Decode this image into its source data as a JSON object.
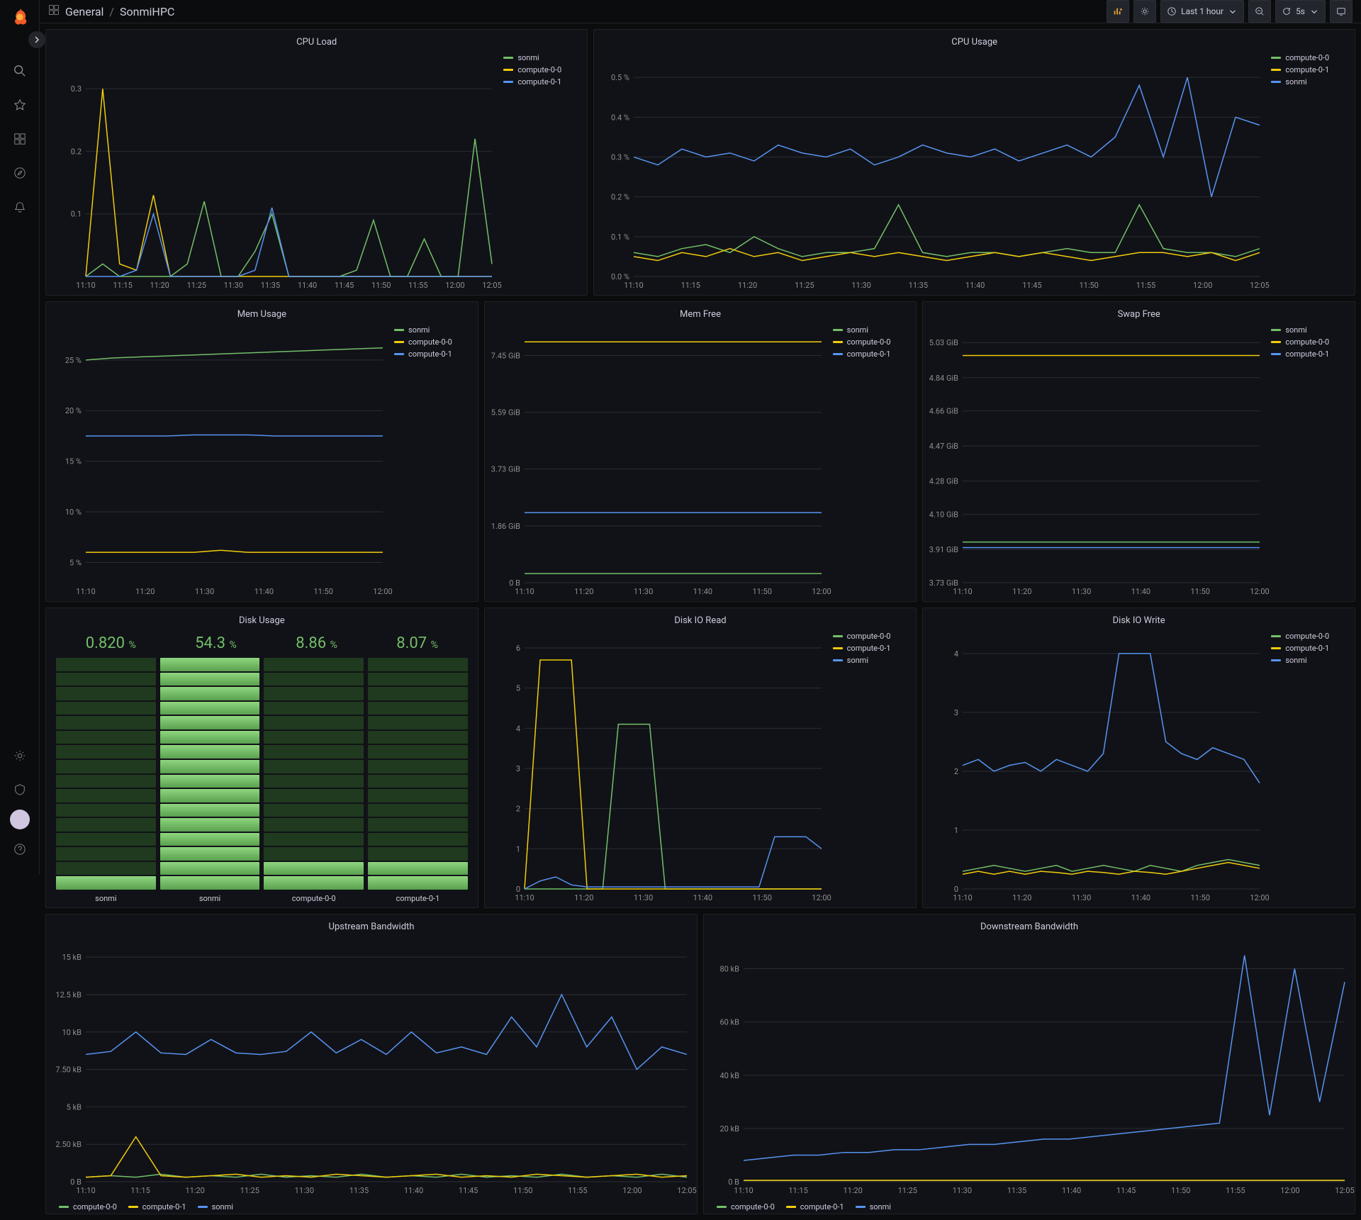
{
  "colors": {
    "bg": "#0b0c0e",
    "panel_bg": "#111217",
    "border": "#202226",
    "text": "#ccccdc",
    "text_dim": "#8e8e8e",
    "grid": "#2a2d34",
    "green": "#73bf69",
    "yellow": "#f2cc0c",
    "blue": "#5794f2"
  },
  "breadcrumb": {
    "folder": "General",
    "dashboard": "SonmiHPC"
  },
  "toolbar": {
    "time_label": "Last 1 hour",
    "refresh_label": "5s"
  },
  "x_ticks_full": [
    "11:10",
    "11:15",
    "11:20",
    "11:25",
    "11:30",
    "11:35",
    "11:40",
    "11:45",
    "11:50",
    "11:55",
    "12:00",
    "12:05"
  ],
  "x_ticks_short": [
    "11:10",
    "11:20",
    "11:30",
    "11:40",
    "11:50",
    "12:00"
  ],
  "panels": {
    "cpu_load": {
      "title": "CPU Load",
      "legend": [
        {
          "label": "sonmi",
          "color": "#73bf69"
        },
        {
          "label": "compute-0-0",
          "color": "#f2cc0c"
        },
        {
          "label": "compute-0-1",
          "color": "#5794f2"
        }
      ],
      "y_ticks": [
        "0.1",
        "0.2",
        "0.3"
      ],
      "ylim": [
        0,
        0.35
      ],
      "series": {
        "sonmi": [
          0,
          0.02,
          0,
          0,
          0,
          0,
          0.02,
          0.12,
          0,
          0,
          0.04,
          0.1,
          0,
          0,
          0,
          0,
          0.01,
          0.09,
          0,
          0,
          0.06,
          0,
          0,
          0.22,
          0.02
        ],
        "compute-0-0": [
          0,
          0.3,
          0.02,
          0.01,
          0.13,
          0,
          0,
          0,
          0,
          0,
          0,
          0,
          0,
          0,
          0,
          0,
          0,
          0,
          0,
          0,
          0,
          0,
          0,
          0,
          0
        ],
        "compute-0-1": [
          0,
          0,
          0,
          0.01,
          0.1,
          0,
          0,
          0,
          0,
          0,
          0.01,
          0.11,
          0,
          0,
          0,
          0,
          0,
          0,
          0,
          0,
          0,
          0,
          0,
          0,
          0
        ]
      }
    },
    "cpu_usage": {
      "title": "CPU Usage",
      "legend": [
        {
          "label": "compute-0-0",
          "color": "#73bf69"
        },
        {
          "label": "compute-0-1",
          "color": "#f2cc0c"
        },
        {
          "label": "sonmi",
          "color": "#5794f2"
        }
      ],
      "y_ticks": [
        "0.0 %",
        "0.1 %",
        "0.2 %",
        "0.3 %",
        "0.4 %",
        "0.5 %"
      ],
      "ylim": [
        0,
        0.55
      ],
      "series": {
        "sonmi": [
          0.3,
          0.28,
          0.32,
          0.3,
          0.31,
          0.29,
          0.33,
          0.31,
          0.3,
          0.32,
          0.28,
          0.3,
          0.33,
          0.31,
          0.3,
          0.32,
          0.29,
          0.31,
          0.33,
          0.3,
          0.35,
          0.48,
          0.3,
          0.5,
          0.2,
          0.4,
          0.38
        ],
        "compute-0-0": [
          0.06,
          0.05,
          0.07,
          0.08,
          0.06,
          0.1,
          0.07,
          0.05,
          0.06,
          0.06,
          0.07,
          0.18,
          0.06,
          0.05,
          0.06,
          0.06,
          0.05,
          0.06,
          0.07,
          0.06,
          0.06,
          0.18,
          0.07,
          0.06,
          0.06,
          0.05,
          0.07
        ],
        "compute-0-1": [
          0.05,
          0.04,
          0.06,
          0.05,
          0.07,
          0.05,
          0.06,
          0.04,
          0.05,
          0.06,
          0.05,
          0.06,
          0.05,
          0.04,
          0.05,
          0.06,
          0.05,
          0.06,
          0.05,
          0.04,
          0.05,
          0.06,
          0.06,
          0.05,
          0.06,
          0.04,
          0.06
        ]
      }
    },
    "mem_usage": {
      "title": "Mem Usage",
      "legend": [
        {
          "label": "sonmi",
          "color": "#73bf69"
        },
        {
          "label": "compute-0-0",
          "color": "#f2cc0c"
        },
        {
          "label": "compute-0-1",
          "color": "#5794f2"
        }
      ],
      "y_ticks": [
        "5 %",
        "10 %",
        "15 %",
        "20 %",
        "25 %"
      ],
      "ylim": [
        3,
        28
      ],
      "series": {
        "sonmi": [
          25,
          25.2,
          25.3,
          25.4,
          25.5,
          25.6,
          25.7,
          25.8,
          25.9,
          26,
          26.1,
          26.2
        ],
        "compute-0-0": [
          6,
          6,
          6,
          6,
          6,
          6.2,
          6,
          6,
          6,
          6,
          6,
          6
        ],
        "compute-0-1": [
          17.5,
          17.5,
          17.5,
          17.5,
          17.6,
          17.6,
          17.6,
          17.5,
          17.5,
          17.5,
          17.5,
          17.5
        ]
      }
    },
    "mem_free": {
      "title": "Mem Free",
      "legend": [
        {
          "label": "sonmi",
          "color": "#73bf69"
        },
        {
          "label": "compute-0-0",
          "color": "#f2cc0c"
        },
        {
          "label": "compute-0-1",
          "color": "#5794f2"
        }
      ],
      "y_ticks": [
        "0 B",
        "1.86 GiB",
        "3.73 GiB",
        "5.59 GiB",
        "7.45 GiB"
      ],
      "ylim": [
        0,
        8.3
      ],
      "series": {
        "sonmi": [
          0.3,
          0.3,
          0.3,
          0.3,
          0.3,
          0.3,
          0.3,
          0.3,
          0.3,
          0.3,
          0.3,
          0.3
        ],
        "compute-0-0": [
          7.9,
          7.9,
          7.9,
          7.9,
          7.9,
          7.9,
          7.9,
          7.9,
          7.9,
          7.9,
          7.9,
          7.9
        ],
        "compute-0-1": [
          2.3,
          2.3,
          2.3,
          2.3,
          2.3,
          2.3,
          2.3,
          2.3,
          2.3,
          2.3,
          2.3,
          2.3
        ]
      }
    },
    "swap_free": {
      "title": "Swap Free",
      "legend": [
        {
          "label": "sonmi",
          "color": "#73bf69"
        },
        {
          "label": "compute-0-0",
          "color": "#f2cc0c"
        },
        {
          "label": "compute-0-1",
          "color": "#5794f2"
        }
      ],
      "y_ticks": [
        "3.73 GiB",
        "3.91 GiB",
        "4.10 GiB",
        "4.28 GiB",
        "4.47 GiB",
        "4.66 GiB",
        "4.84 GiB",
        "5.03 GiB"
      ],
      "ylim": [
        3.73,
        5.1
      ],
      "series": {
        "sonmi": [
          3.95,
          3.95,
          3.95,
          3.95,
          3.95,
          3.95,
          3.95,
          3.95,
          3.95,
          3.95,
          3.95,
          3.95
        ],
        "compute-0-0": [
          4.96,
          4.96,
          4.96,
          4.96,
          4.96,
          4.96,
          4.96,
          4.96,
          4.96,
          4.96,
          4.96,
          4.96
        ],
        "compute-0-1": [
          3.92,
          3.92,
          3.92,
          3.92,
          3.92,
          3.92,
          3.92,
          3.92,
          3.92,
          3.92,
          3.92,
          3.92
        ]
      }
    },
    "disk_usage": {
      "title": "Disk Usage",
      "items": [
        {
          "label": "sonmi",
          "value": "0.820",
          "unit": "%",
          "filled": 1,
          "total": 16
        },
        {
          "label": "sonmi",
          "value": "54.3",
          "unit": "%",
          "filled": 16,
          "total": 16
        },
        {
          "label": "compute-0-0",
          "value": "8.86",
          "unit": "%",
          "filled": 2,
          "total": 16
        },
        {
          "label": "compute-0-1",
          "value": "8.07",
          "unit": "%",
          "filled": 2,
          "total": 16
        }
      ]
    },
    "disk_read": {
      "title": "Disk IO Read",
      "legend": [
        {
          "label": "compute-0-0",
          "color": "#73bf69"
        },
        {
          "label": "compute-0-1",
          "color": "#f2cc0c"
        },
        {
          "label": "sonmi",
          "color": "#5794f2"
        }
      ],
      "y_ticks": [
        "0",
        "1",
        "2",
        "3",
        "4",
        "5",
        "6"
      ],
      "ylim": [
        0,
        6.3
      ],
      "series": {
        "compute-0-0": [
          0,
          0,
          0,
          0,
          0,
          0,
          4.1,
          4.1,
          4.1,
          0,
          0,
          0,
          0,
          0,
          0,
          0,
          0,
          0,
          0,
          0
        ],
        "compute-0-1": [
          0,
          5.7,
          5.7,
          5.7,
          0,
          0,
          0,
          0,
          0,
          0,
          0,
          0,
          0,
          0,
          0,
          0,
          0,
          0,
          0,
          0
        ],
        "sonmi": [
          0,
          0.2,
          0.3,
          0.1,
          0.05,
          0.05,
          0.05,
          0.05,
          0.05,
          0.05,
          0.05,
          0.05,
          0.05,
          0.05,
          0.05,
          0.05,
          1.3,
          1.3,
          1.3,
          1.0
        ]
      }
    },
    "disk_write": {
      "title": "Disk IO Write",
      "legend": [
        {
          "label": "compute-0-0",
          "color": "#73bf69"
        },
        {
          "label": "compute-0-1",
          "color": "#f2cc0c"
        },
        {
          "label": "sonmi",
          "color": "#5794f2"
        }
      ],
      "y_ticks": [
        "0",
        "1",
        "2",
        "3",
        "4"
      ],
      "ylim": [
        0,
        4.3
      ],
      "series": {
        "compute-0-0": [
          0.3,
          0.35,
          0.4,
          0.35,
          0.3,
          0.35,
          0.4,
          0.3,
          0.35,
          0.4,
          0.35,
          0.3,
          0.4,
          0.35,
          0.3,
          0.4,
          0.45,
          0.5,
          0.45,
          0.4
        ],
        "compute-0-1": [
          0.25,
          0.3,
          0.25,
          0.3,
          0.25,
          0.3,
          0.28,
          0.25,
          0.3,
          0.28,
          0.25,
          0.3,
          0.28,
          0.25,
          0.3,
          0.35,
          0.4,
          0.45,
          0.4,
          0.35
        ],
        "sonmi": [
          2.1,
          2.2,
          2.0,
          2.1,
          2.15,
          2.0,
          2.2,
          2.1,
          2.0,
          2.3,
          4.0,
          4.0,
          4.0,
          2.5,
          2.3,
          2.2,
          2.4,
          2.3,
          2.2,
          1.8
        ]
      }
    },
    "up_bw": {
      "title": "Upstream Bandwidth",
      "legend": [
        {
          "label": "compute-0-0",
          "color": "#73bf69"
        },
        {
          "label": "compute-0-1",
          "color": "#f2cc0c"
        },
        {
          "label": "sonmi",
          "color": "#5794f2"
        }
      ],
      "y_ticks": [
        "0 B",
        "2.50 kB",
        "5 kB",
        "7.50 kB",
        "10 kB",
        "12.5 kB",
        "15 kB"
      ],
      "ylim": [
        0,
        16
      ],
      "series": {
        "compute-0-0": [
          0.3,
          0.4,
          0.3,
          0.5,
          0.3,
          0.4,
          0.3,
          0.5,
          0.3,
          0.4,
          0.3,
          0.5,
          0.3,
          0.4,
          0.3,
          0.5,
          0.3,
          0.4,
          0.3,
          0.5,
          0.3,
          0.4,
          0.3,
          0.5,
          0.3
        ],
        "compute-0-1": [
          0.3,
          0.4,
          3.0,
          0.4,
          0.3,
          0.4,
          0.5,
          0.3,
          0.4,
          0.3,
          0.5,
          0.4,
          0.3,
          0.4,
          0.5,
          0.3,
          0.4,
          0.3,
          0.5,
          0.4,
          0.3,
          0.4,
          0.5,
          0.3,
          0.4
        ],
        "sonmi": [
          8.5,
          8.7,
          10,
          8.6,
          8.5,
          9.5,
          8.6,
          8.5,
          8.7,
          10,
          8.6,
          9.5,
          8.5,
          10,
          8.6,
          9,
          8.5,
          11,
          9,
          12.5,
          9,
          11,
          7.5,
          9,
          8.5
        ]
      }
    },
    "down_bw": {
      "title": "Downstream Bandwidth",
      "legend": [
        {
          "label": "compute-0-0",
          "color": "#73bf69"
        },
        {
          "label": "compute-0-1",
          "color": "#f2cc0c"
        },
        {
          "label": "sonmi",
          "color": "#5794f2"
        }
      ],
      "y_ticks": [
        "0 B",
        "20 kB",
        "40 kB",
        "60 kB",
        "80 kB"
      ],
      "ylim": [
        0,
        90
      ],
      "series": {
        "compute-0-0": [
          0.5,
          0.5,
          0.5,
          0.5,
          0.5,
          0.5,
          0.5,
          0.5,
          0.5,
          0.5,
          0.5,
          0.5,
          0.5,
          0.5,
          0.5,
          0.5,
          0.5,
          0.5,
          0.5,
          0.5,
          0.5,
          0.5,
          0.5,
          0.5,
          0.5
        ],
        "compute-0-1": [
          0.5,
          0.5,
          0.5,
          0.5,
          0.5,
          0.5,
          0.5,
          0.5,
          0.5,
          0.5,
          0.5,
          0.5,
          0.5,
          0.5,
          0.5,
          0.5,
          0.5,
          0.5,
          0.5,
          0.5,
          0.5,
          0.5,
          0.5,
          0.5,
          0.5
        ],
        "sonmi": [
          8,
          9,
          10,
          10,
          11,
          11,
          12,
          12,
          13,
          14,
          14,
          15,
          16,
          16,
          17,
          18,
          19,
          20,
          21,
          22,
          85,
          25,
          80,
          30,
          75
        ]
      }
    }
  }
}
